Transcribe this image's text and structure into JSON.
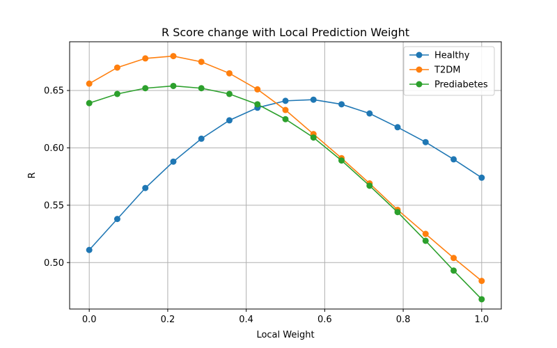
{
  "chart_data": {
    "type": "line",
    "title": "R Score change with Local Prediction Weight",
    "xlabel": "Local Weight",
    "ylabel": "R",
    "xlim": [
      -0.05,
      1.05
    ],
    "ylim": [
      0.4595,
      0.6925
    ],
    "x_ticks": [
      0.0,
      0.2,
      0.4,
      0.6,
      0.8,
      1.0
    ],
    "x_tick_labels": [
      "0.0",
      "0.2",
      "0.4",
      "0.6",
      "0.8",
      "1.0"
    ],
    "y_ticks": [
      0.5,
      0.55,
      0.6,
      0.65
    ],
    "y_tick_labels": [
      "0.50",
      "0.55",
      "0.60",
      "0.65"
    ],
    "grid": true,
    "legend_position": "upper right",
    "x": [
      0.0,
      0.0714,
      0.1429,
      0.2143,
      0.2857,
      0.3571,
      0.4286,
      0.5,
      0.5714,
      0.6429,
      0.7143,
      0.7857,
      0.8571,
      0.9286,
      1.0
    ],
    "series": [
      {
        "name": "Healthy",
        "color": "#1f77b4",
        "values": [
          0.511,
          0.538,
          0.565,
          0.588,
          0.608,
          0.624,
          0.635,
          0.641,
          0.642,
          0.638,
          0.63,
          0.618,
          0.605,
          0.59,
          0.574
        ]
      },
      {
        "name": "T2DM",
        "color": "#ff7f0e",
        "values": [
          0.656,
          0.67,
          0.678,
          0.68,
          0.675,
          0.665,
          0.651,
          0.633,
          0.612,
          0.591,
          0.569,
          0.546,
          0.525,
          0.504,
          0.484
        ]
      },
      {
        "name": "Prediabetes",
        "color": "#2ca02c",
        "values": [
          0.639,
          0.647,
          0.652,
          0.654,
          0.652,
          0.647,
          0.638,
          0.625,
          0.609,
          0.589,
          0.567,
          0.544,
          0.519,
          0.493,
          0.468
        ]
      }
    ]
  }
}
